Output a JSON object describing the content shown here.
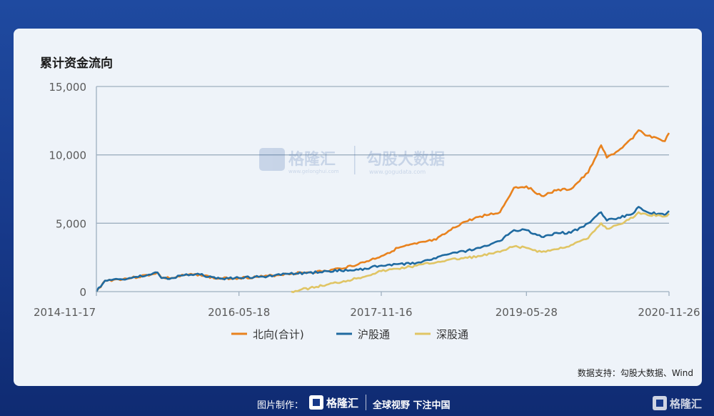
{
  "title": "累计资金流向",
  "source": "数据支持：勾股大数据、Wind",
  "watermark": {
    "brand": "格隆汇",
    "brand_url": "www.gelonghui.com",
    "sub": "勾股大数据",
    "sub_url": "www.gogudata.com"
  },
  "footer": {
    "credit": "图片制作：",
    "brand": "格隆汇",
    "slogan": "全球视野 下注中国"
  },
  "colors": {
    "north": "#e8821e",
    "sh": "#1f6aa0",
    "sz": "#e0c565",
    "grid": "#9fb0c0"
  },
  "chart_data": {
    "type": "line",
    "title": "累计资金流向",
    "xlabel": "",
    "ylabel": "",
    "x_ticks": [
      "2014-11-17",
      "2016-05-18",
      "2017-11-16",
      "2019-05-28",
      "2020-11-26"
    ],
    "x_range": [
      "2014-11-17",
      "2020-11-26"
    ],
    "ylim": [
      0,
      15000
    ],
    "y_ticks": [
      "0",
      "5,000",
      "10,000",
      "15,000"
    ],
    "y_tick_values": [
      0,
      5000,
      10000,
      15000
    ],
    "grid": "horizontal",
    "legend_position": "bottom",
    "series": [
      {
        "name": "北向(合计)",
        "color": "#e8821e",
        "points": [
          [
            "2014-11-17",
            0
          ],
          [
            "2014-12-20",
            800
          ],
          [
            "2015-04-01",
            1000
          ],
          [
            "2015-06-15",
            1250
          ],
          [
            "2015-07-10",
            1400
          ],
          [
            "2015-07-25",
            1000
          ],
          [
            "2015-09-10",
            1000
          ],
          [
            "2015-10-20",
            1200
          ],
          [
            "2015-12-20",
            1250
          ],
          [
            "2016-02-20",
            950
          ],
          [
            "2016-05-18",
            1000
          ],
          [
            "2016-08-20",
            1100
          ],
          [
            "2016-11-20",
            1300
          ],
          [
            "2017-02-01",
            1400
          ],
          [
            "2017-04-20",
            1500
          ],
          [
            "2017-06-10",
            1700
          ],
          [
            "2017-08-20",
            2000
          ],
          [
            "2017-11-16",
            2600
          ],
          [
            "2018-01-20",
            3200
          ],
          [
            "2018-04-01",
            3500
          ],
          [
            "2018-06-15",
            3800
          ],
          [
            "2018-07-25",
            4300
          ],
          [
            "2018-09-20",
            5000
          ],
          [
            "2018-12-01",
            5500
          ],
          [
            "2019-02-15",
            5800
          ],
          [
            "2019-04-10",
            7600
          ],
          [
            "2019-05-28",
            7700
          ],
          [
            "2019-07-25",
            7000
          ],
          [
            "2019-09-20",
            7400
          ],
          [
            "2019-11-15",
            7500
          ],
          [
            "2020-01-20",
            8700
          ],
          [
            "2020-03-10",
            10700
          ],
          [
            "2020-04-01",
            9800
          ],
          [
            "2020-05-15",
            10300
          ],
          [
            "2020-07-10",
            11200
          ],
          [
            "2020-08-01",
            11800
          ],
          [
            "2020-09-05",
            11400
          ],
          [
            "2020-10-15",
            11200
          ],
          [
            "2020-11-10",
            11000
          ],
          [
            "2020-11-26",
            11600
          ]
        ]
      },
      {
        "name": "沪股通",
        "color": "#1f6aa0",
        "points": [
          [
            "2014-11-17",
            0
          ],
          [
            "2014-12-20",
            800
          ],
          [
            "2015-04-01",
            1000
          ],
          [
            "2015-06-15",
            1250
          ],
          [
            "2015-07-10",
            1400
          ],
          [
            "2015-07-25",
            1000
          ],
          [
            "2015-09-10",
            1000
          ],
          [
            "2015-10-20",
            1200
          ],
          [
            "2015-12-20",
            1250
          ],
          [
            "2016-02-20",
            950
          ],
          [
            "2016-05-18",
            1000
          ],
          [
            "2016-08-20",
            1100
          ],
          [
            "2016-11-20",
            1300
          ],
          [
            "2017-02-01",
            1350
          ],
          [
            "2017-04-20",
            1500
          ],
          [
            "2017-08-20",
            1600
          ],
          [
            "2017-11-16",
            1900
          ],
          [
            "2018-04-01",
            2100
          ],
          [
            "2018-07-25",
            2700
          ],
          [
            "2018-12-01",
            3200
          ],
          [
            "2019-02-15",
            3700
          ],
          [
            "2019-04-10",
            4500
          ],
          [
            "2019-05-28",
            4500
          ],
          [
            "2019-07-25",
            4000
          ],
          [
            "2019-09-20",
            4300
          ],
          [
            "2019-11-15",
            4300
          ],
          [
            "2020-01-20",
            5000
          ],
          [
            "2020-03-10",
            5800
          ],
          [
            "2020-04-01",
            5200
          ],
          [
            "2020-05-15",
            5400
          ],
          [
            "2020-07-10",
            5700
          ],
          [
            "2020-08-01",
            6200
          ],
          [
            "2020-09-05",
            5800
          ],
          [
            "2020-10-15",
            5700
          ],
          [
            "2020-11-10",
            5600
          ],
          [
            "2020-11-26",
            5900
          ]
        ]
      },
      {
        "name": "深股通",
        "color": "#e0c565",
        "points": [
          [
            "2016-12-05",
            0
          ],
          [
            "2017-04-20",
            500
          ],
          [
            "2017-08-20",
            1000
          ],
          [
            "2017-11-16",
            1500
          ],
          [
            "2018-04-01",
            1900
          ],
          [
            "2018-07-25",
            2300
          ],
          [
            "2018-12-01",
            2600
          ],
          [
            "2019-02-15",
            2900
          ],
          [
            "2019-04-10",
            3300
          ],
          [
            "2019-05-28",
            3200
          ],
          [
            "2019-07-25",
            2900
          ],
          [
            "2019-09-20",
            3100
          ],
          [
            "2019-11-15",
            3400
          ],
          [
            "2020-01-20",
            3900
          ],
          [
            "2020-03-10",
            5000
          ],
          [
            "2020-04-01",
            4600
          ],
          [
            "2020-05-15",
            4900
          ],
          [
            "2020-07-10",
            5400
          ],
          [
            "2020-08-01",
            5800
          ],
          [
            "2020-09-05",
            5600
          ],
          [
            "2020-10-15",
            5600
          ],
          [
            "2020-11-10",
            5500
          ],
          [
            "2020-11-26",
            5700
          ]
        ]
      }
    ]
  }
}
